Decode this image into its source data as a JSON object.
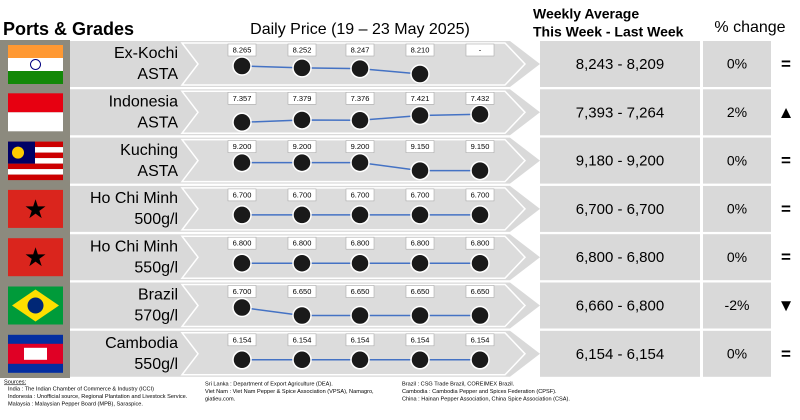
{
  "header": {
    "title": "Ports & Grades",
    "daily_title": "Daily Price (19 – 23 May 2025)",
    "weekly_title_1": "Weekly Average",
    "weekly_title_2": "This Week - Last Week",
    "change_title": "% change"
  },
  "rows": [
    {
      "name": "Ex-Kochi",
      "grade": "ASTA",
      "daily": [
        {
          "value": 8265,
          "label": "8.265"
        },
        {
          "value": 8252,
          "label": "8.252"
        },
        {
          "value": 8247,
          "label": "8.247"
        },
        {
          "value": 8210,
          "label": "8.210"
        },
        {
          "value": null,
          "label": "-"
        }
      ],
      "weekly": "8,243 - 8,209",
      "change": "0%",
      "indicator": "=",
      "indicator_color": "#29a8e0"
    },
    {
      "name": "Indonesia",
      "grade": "ASTA",
      "daily": [
        {
          "value": 7357,
          "label": "7.357"
        },
        {
          "value": 7379,
          "label": "7.379"
        },
        {
          "value": 7376,
          "label": "7.376"
        },
        {
          "value": 7421,
          "label": "7.421"
        },
        {
          "value": 7432,
          "label": "7.432"
        }
      ],
      "weekly": "7,393 - 7,264",
      "change": "2%",
      "indicator": "▲",
      "indicator_color": "#1fb141"
    },
    {
      "name": "Kuching",
      "grade": "ASTA",
      "daily": [
        {
          "value": 9200,
          "label": "9.200"
        },
        {
          "value": 9200,
          "label": "9.200"
        },
        {
          "value": 9200,
          "label": "9.200"
        },
        {
          "value": 9150,
          "label": "9.150"
        },
        {
          "value": 9150,
          "label": "9.150"
        }
      ],
      "weekly": "9,180 - 9,200",
      "change": "0%",
      "indicator": "=",
      "indicator_color": "#29a8e0"
    },
    {
      "name": "Ho Chi Minh",
      "grade": "500g/l",
      "daily": [
        {
          "value": 6700,
          "label": "6.700"
        },
        {
          "value": 6700,
          "label": "6.700"
        },
        {
          "value": 6700,
          "label": "6.700"
        },
        {
          "value": 6700,
          "label": "6.700"
        },
        {
          "value": 6700,
          "label": "6.700"
        }
      ],
      "weekly": "6,700 - 6,700",
      "change": "0%",
      "indicator": "=",
      "indicator_color": "#29a8e0"
    },
    {
      "name": "Ho Chi Minh",
      "grade": "550g/l",
      "daily": [
        {
          "value": 6800,
          "label": "6.800"
        },
        {
          "value": 6800,
          "label": "6.800"
        },
        {
          "value": 6800,
          "label": "6.800"
        },
        {
          "value": 6800,
          "label": "6.800"
        },
        {
          "value": 6800,
          "label": "6.800"
        }
      ],
      "weekly": "6,800 - 6,800",
      "change": "0%",
      "indicator": "=",
      "indicator_color": "#29a8e0"
    },
    {
      "name": "Brazil",
      "grade": "570g/l",
      "daily": [
        {
          "value": 6700,
          "label": "6.700"
        },
        {
          "value": 6650,
          "label": "6.650"
        },
        {
          "value": 6650,
          "label": "6.650"
        },
        {
          "value": 6650,
          "label": "6.650"
        },
        {
          "value": 6650,
          "label": "6.650"
        }
      ],
      "weekly": "6,660 - 6,800",
      "change": "-2%",
      "indicator": "▼",
      "indicator_color": "#e3161c"
    },
    {
      "name": "Cambodia",
      "grade": "550g/l",
      "daily": [
        {
          "value": 6154,
          "label": "6.154"
        },
        {
          "value": 6154,
          "label": "6.154"
        },
        {
          "value": 6154,
          "label": "6.154"
        },
        {
          "value": 6154,
          "label": "6.154"
        },
        {
          "value": 6154,
          "label": "6.154"
        }
      ],
      "weekly": "6,154 - 6,154",
      "change": "0%",
      "indicator": "=",
      "indicator_color": "#29a8e0"
    }
  ],
  "sources": {
    "title": "Sources:",
    "col1": [
      "India : The Indian Chamber of Commerce & Industry (ICCI)",
      "Indonesia : Unofficial source, Regional Plantation and Livestock Service.",
      "Malaysia : Malaysian Pepper Board (MPB), Saraspice."
    ],
    "col2": [
      "Sri Lanka : Department of Export Agriculture (DEA).",
      "Viet Nam : Viet Nam Pepper & Spice Association (VPSA), Namagro,",
      "giatieu.com."
    ],
    "col3": [
      "Brazil : CSG Trade Brazil, COREIMEX Brazil.",
      "Cambodia : Cambodia Pepper and Spices Federation (CPSF).",
      "China : Hainan Pepper Association, China Spice Association (CSA)."
    ]
  }
}
